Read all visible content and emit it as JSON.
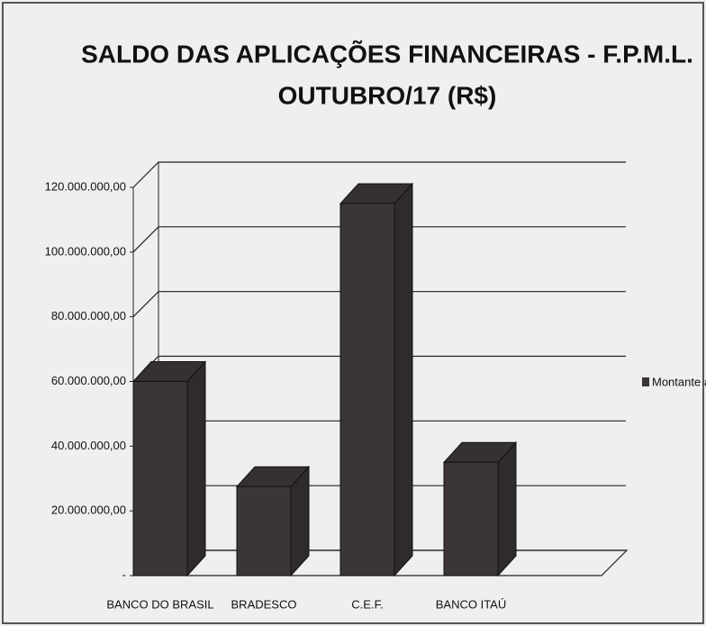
{
  "chart_data": {
    "type": "bar3d",
    "title": [
      "SALDO DAS APLICAÇÕES FINANCEIRAS - F.P.M.L.",
      "OUTUBRO/17 (R$)"
    ],
    "categories": [
      "BANCO DO BRASIL",
      "BRADESCO",
      "C.E.F.",
      "BANCO ITAÚ"
    ],
    "series": [
      {
        "name": "Montante aplicado",
        "color": "#3b3538",
        "values": [
          60000000,
          27500000,
          115000000,
          35000000
        ]
      }
    ],
    "ylim": [
      0,
      120000000
    ],
    "yticks": [
      {
        "value": 0,
        "label": "-"
      },
      {
        "value": 20000000,
        "label": "20.000.000,00"
      },
      {
        "value": 40000000,
        "label": "40.000.000,00"
      },
      {
        "value": 60000000,
        "label": "60.000.000,00"
      },
      {
        "value": 80000000,
        "label": "80.000.000,00"
      },
      {
        "value": 100000000,
        "label": "100.000.000,00"
      },
      {
        "value": 120000000,
        "label": "120.000.000,00"
      }
    ],
    "grid": true,
    "legend": "right"
  }
}
